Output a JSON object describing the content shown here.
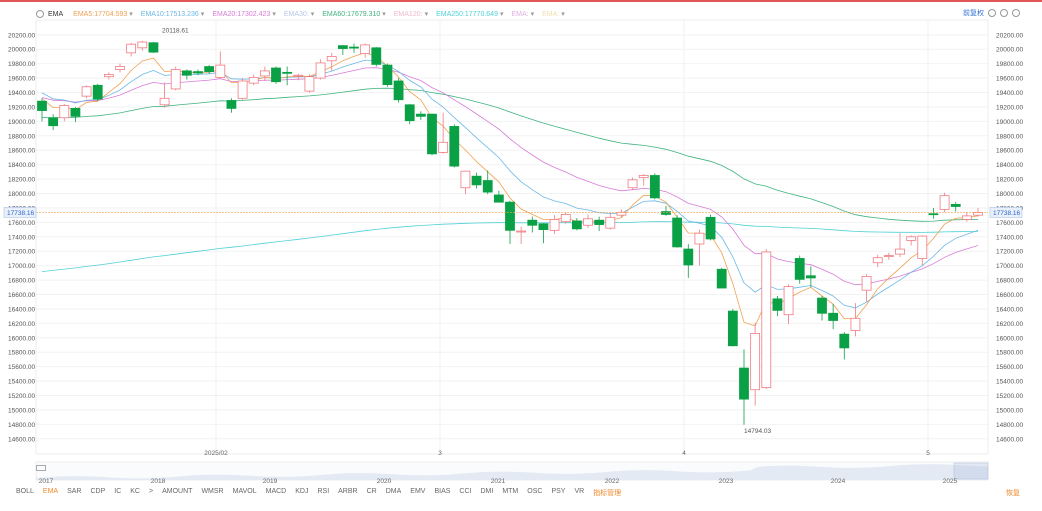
{
  "legend": {
    "name": "EMA",
    "items": [
      {
        "label": "EMA5:",
        "value": "17704.593",
        "color": "#f0a050"
      },
      {
        "label": "EMA10:",
        "value": "17513.236",
        "color": "#6bb8e8"
      },
      {
        "label": "EMA20:",
        "value": "17302.423",
        "color": "#d77cd8"
      },
      {
        "label": "EMA30:",
        "value": "",
        "color": "#b8c8e8"
      },
      {
        "label": "EMA60:",
        "value": "17679.310",
        "color": "#3fb37f"
      },
      {
        "label": "EMA120:",
        "value": "",
        "color": "#f0b8c8"
      },
      {
        "label": "EMA250:",
        "value": "17770.649",
        "color": "#4fd0d8"
      },
      {
        "label": "EMA:",
        "value": "",
        "color": "#e0b0e0"
      },
      {
        "label": "EMA:",
        "value": "",
        "color": "#f0e0b0"
      }
    ]
  },
  "top_right": {
    "link": "前复权"
  },
  "colors": {
    "up": "#f07b82",
    "down": "#0aa045",
    "current": "#3aa0e8"
  },
  "chart_data": {
    "type": "candlestick",
    "y_ticks": [
      "20200.00",
      "20000.00",
      "19800.00",
      "19600.00",
      "19400.00",
      "19200.00",
      "19000.00",
      "18800.00",
      "18600.00",
      "18400.00",
      "18200.00",
      "18000.00",
      "17800.00",
      "17600.00",
      "17400.00",
      "17200.00",
      "17000.00",
      "16800.00",
      "16600.00",
      "16400.00",
      "16200.00",
      "16000.00",
      "15800.00",
      "15600.00",
      "15400.00",
      "15200.00",
      "15000.00",
      "14800.00",
      "14600.00"
    ],
    "ylim": [
      14500,
      20350
    ],
    "current_price": "17738.16",
    "high_label": "20118.61",
    "low_label": "14794.03",
    "x_labels": [
      "2025/02",
      "3",
      "4",
      "5"
    ],
    "nav_years": [
      "2017",
      "2018",
      "2019",
      "2020",
      "2021",
      "2022",
      "2023",
      "2024",
      "2025"
    ],
    "candles": [
      [
        19280,
        19150,
        19320,
        19000
      ],
      [
        19050,
        18940,
        19100,
        18880
      ],
      [
        19050,
        19220,
        19240,
        19000
      ],
      [
        19180,
        19070,
        19200,
        18990
      ],
      [
        19350,
        19480,
        19500,
        19320
      ],
      [
        19500,
        19310,
        19520,
        19280
      ],
      [
        19620,
        19650,
        19680,
        19580
      ],
      [
        19720,
        19760,
        19800,
        19680
      ],
      [
        19950,
        20070,
        20090,
        19900
      ],
      [
        20020,
        20100,
        20119,
        19980
      ],
      [
        20090,
        19960,
        20100,
        19950
      ],
      [
        19230,
        19320,
        19540,
        19190
      ],
      [
        19450,
        19720,
        19760,
        19430
      ],
      [
        19700,
        19640,
        19720,
        19580
      ],
      [
        19690,
        19670,
        19720,
        19640
      ],
      [
        19760,
        19690,
        19780,
        19660
      ],
      [
        19610,
        19780,
        19970,
        19600
      ],
      [
        19290,
        19180,
        19320,
        19120
      ],
      [
        19320,
        19560,
        19600,
        19300
      ],
      [
        19530,
        19610,
        19650,
        19500
      ],
      [
        19630,
        19700,
        19760,
        19560
      ],
      [
        19740,
        19550,
        19760,
        19520
      ],
      [
        19680,
        19670,
        19760,
        19500
      ],
      [
        19630,
        19640,
        19660,
        19570
      ],
      [
        19420,
        19620,
        19650,
        19400
      ],
      [
        19600,
        19810,
        19860,
        19580
      ],
      [
        19840,
        19900,
        19950,
        19700
      ],
      [
        20050,
        20010,
        20060,
        19920
      ],
      [
        20030,
        20020,
        20080,
        19950
      ],
      [
        19940,
        20060,
        20080,
        19880
      ],
      [
        20020,
        19790,
        20030,
        19760
      ],
      [
        19780,
        19510,
        19800,
        19480
      ],
      [
        19560,
        19300,
        19600,
        19260
      ],
      [
        19230,
        19010,
        19240,
        18960
      ],
      [
        19100,
        19070,
        19140,
        19020
      ],
      [
        19100,
        18550,
        19110,
        18530
      ],
      [
        18570,
        18710,
        19120,
        18550
      ],
      [
        18930,
        18380,
        18960,
        18360
      ],
      [
        18080,
        18310,
        18320,
        17990
      ],
      [
        18240,
        18120,
        18290,
        18070
      ],
      [
        18180,
        18020,
        18320,
        17990
      ],
      [
        17980,
        17880,
        18040,
        17900
      ],
      [
        17880,
        17490,
        17900,
        17300
      ],
      [
        17480,
        17480,
        17540,
        17300
      ],
      [
        17630,
        17560,
        17680,
        17460
      ],
      [
        17580,
        17500,
        17590,
        17310
      ],
      [
        17490,
        17640,
        17700,
        17440
      ],
      [
        17610,
        17710,
        17740,
        17580
      ],
      [
        17620,
        17510,
        17660,
        17490
      ],
      [
        17560,
        17650,
        17710,
        17520
      ],
      [
        17630,
        17570,
        17680,
        17480
      ],
      [
        17520,
        17670,
        17730,
        17500
      ],
      [
        17700,
        17740,
        17780,
        17670
      ],
      [
        18080,
        18190,
        18220,
        18050
      ],
      [
        18220,
        18250,
        18270,
        18110
      ],
      [
        18250,
        17940,
        18280,
        17920
      ],
      [
        17750,
        17710,
        17830,
        17690
      ],
      [
        17660,
        17260,
        17700,
        17250
      ],
      [
        17230,
        17010,
        17300,
        16830
      ],
      [
        17300,
        17450,
        17500,
        17000
      ],
      [
        17670,
        17370,
        17710,
        17350
      ],
      [
        16950,
        16690,
        16970,
        16690
      ],
      [
        16370,
        15890,
        16400,
        15880
      ],
      [
        15580,
        15150,
        15840,
        14794
      ],
      [
        15280,
        16060,
        16210,
        15060
      ],
      [
        15310,
        17190,
        17230,
        15290
      ],
      [
        16540,
        16380,
        16580,
        16300
      ],
      [
        16320,
        16710,
        16740,
        16190
      ],
      [
        17100,
        16810,
        17140,
        16750
      ],
      [
        16860,
        16830,
        16990,
        16700
      ],
      [
        16550,
        16340,
        16580,
        16240
      ],
      [
        16340,
        16240,
        16470,
        16120
      ],
      [
        16050,
        15860,
        16080,
        15700
      ],
      [
        16100,
        16270,
        16480,
        16020
      ],
      [
        16660,
        16850,
        16880,
        16500
      ],
      [
        17040,
        17110,
        17150,
        16980
      ],
      [
        17140,
        17140,
        17180,
        17080
      ],
      [
        17160,
        17230,
        17450,
        17120
      ],
      [
        17350,
        17400,
        17420,
        17280
      ],
      [
        17100,
        17410,
        17420,
        17000
      ],
      [
        17720,
        17710,
        17800,
        17650
      ],
      [
        17780,
        17970,
        18010,
        17740
      ],
      [
        17850,
        17820,
        17880,
        17750
      ],
      [
        17640,
        17690,
        17740,
        17610
      ],
      [
        17700,
        17738.16,
        17800,
        17680
      ]
    ]
  }
}
